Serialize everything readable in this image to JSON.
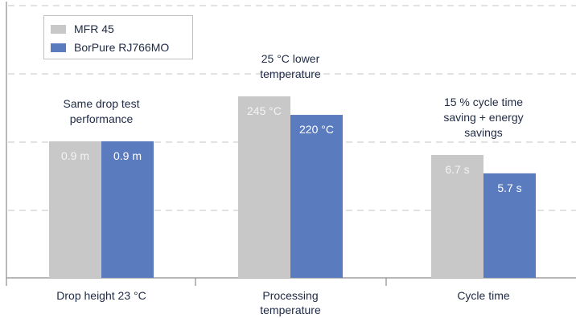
{
  "chart_data": {
    "type": "bar",
    "categories": [
      "Drop height 23 °C",
      "Processing temperature",
      "Cycle time"
    ],
    "series": [
      {
        "name": "MFR 45",
        "color": "#c8c8c8",
        "values": [
          0.9,
          245,
          6.7
        ],
        "value_labels": [
          "0.9 m",
          "245 °C",
          "6.7 s"
        ]
      },
      {
        "name": "BorPure RJ766MO",
        "color": "#5b7bbf",
        "values": [
          0.9,
          220,
          5.7
        ],
        "value_labels": [
          "0.9 m",
          "220 °C",
          "5.7 s"
        ]
      }
    ],
    "annotations": [
      "Same drop test performance",
      "25 °C lower temperature",
      "15 % cycle time saving + energy savings"
    ],
    "grid": true,
    "legend_position": "top-left"
  }
}
